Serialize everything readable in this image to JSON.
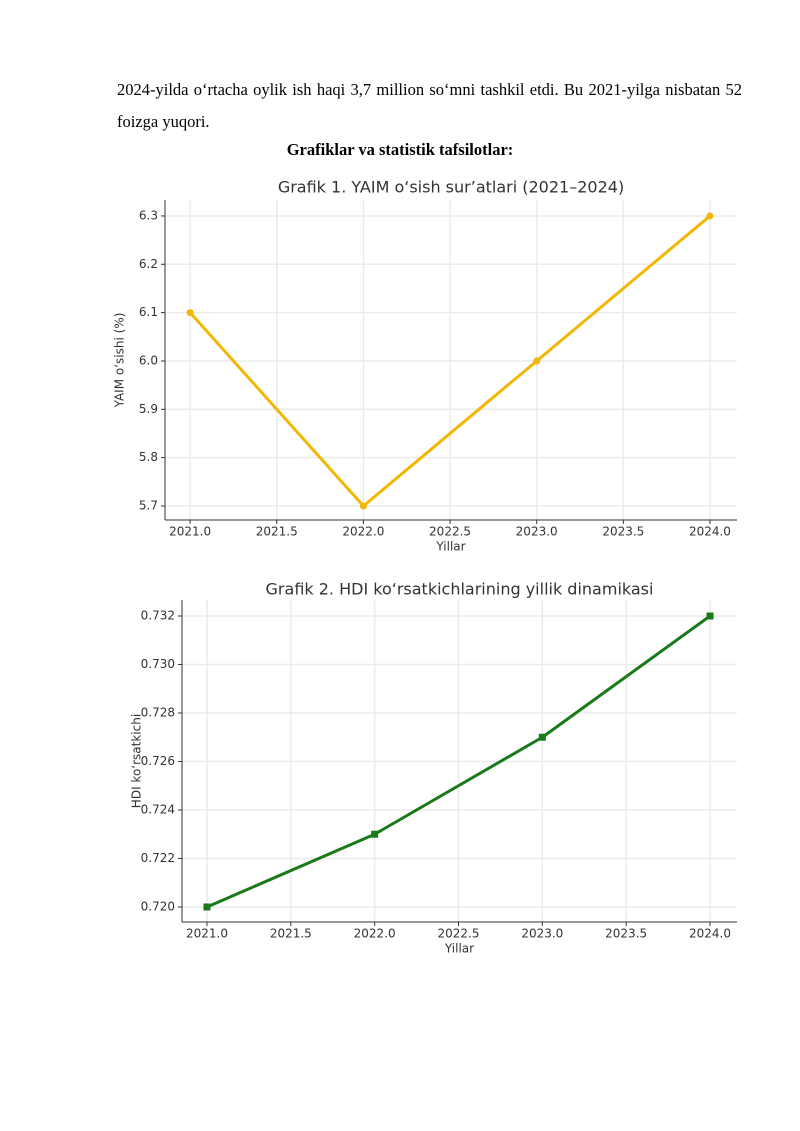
{
  "paragraph": "2024-yilda o‘rtacha oylik ish haqi 3,7 million so‘mni tashkil etdi. Bu 2021-yilga nisbatan 52 foizga yuqori.",
  "heading": "Grafiklar va statistik tafsilotlar:",
  "chart_data": [
    {
      "type": "line",
      "title": "Grafik 1. YAIM o‘sish sur’atlari (2021–2024)",
      "x_label": "Yillar",
      "y_label": "YAIM o‘sishi (%)",
      "x": [
        2021,
        2022,
        2023,
        2024
      ],
      "values": [
        6.1,
        5.7,
        6.0,
        6.3
      ],
      "color": "#f2b705",
      "marker": "circle",
      "xlim": [
        2020.855,
        2024.156
      ],
      "ylim": [
        5.671,
        6.333
      ],
      "xticks": [
        {
          "value": 2021,
          "label": "2021.0"
        },
        2021.5,
        {
          "value": 2022,
          "label": "2022.0"
        },
        2022.5,
        {
          "value": 2023,
          "label": "2023.0"
        },
        2023.5,
        {
          "value": 2024,
          "label": "2024.0"
        }
      ],
      "yticks": [
        5.7,
        5.8,
        5.9,
        {
          "value": 6,
          "label": "6.0"
        },
        6.1,
        6.2,
        6.3
      ],
      "grid": true
    },
    {
      "type": "line",
      "title": "Grafik 2. HDI ko‘rsatkichlarining yillik dinamikasi",
      "x_label": "Yillar",
      "y_label": "HDI ko‘rsatkichi",
      "x": [
        2021,
        2022,
        2023,
        2024
      ],
      "values": [
        0.72,
        0.723,
        0.727,
        0.732
      ],
      "color": "#1a7a1a",
      "marker": "square",
      "xlim": [
        2020.851,
        2024.161
      ],
      "ylim": [
        0.71938,
        0.73266
      ],
      "xticks": [
        {
          "value": 2021,
          "label": "2021.0"
        },
        2021.5,
        {
          "value": 2022,
          "label": "2022.0"
        },
        2022.5,
        {
          "value": 2023,
          "label": "2023.0"
        },
        2023.5,
        {
          "value": 2024,
          "label": "2024.0"
        }
      ],
      "yticks": [
        {
          "value": 0.72,
          "label": "0.720"
        },
        0.722,
        0.724,
        0.726,
        0.728,
        {
          "value": 0.73,
          "label": "0.730"
        },
        0.732
      ],
      "grid": true
    }
  ]
}
